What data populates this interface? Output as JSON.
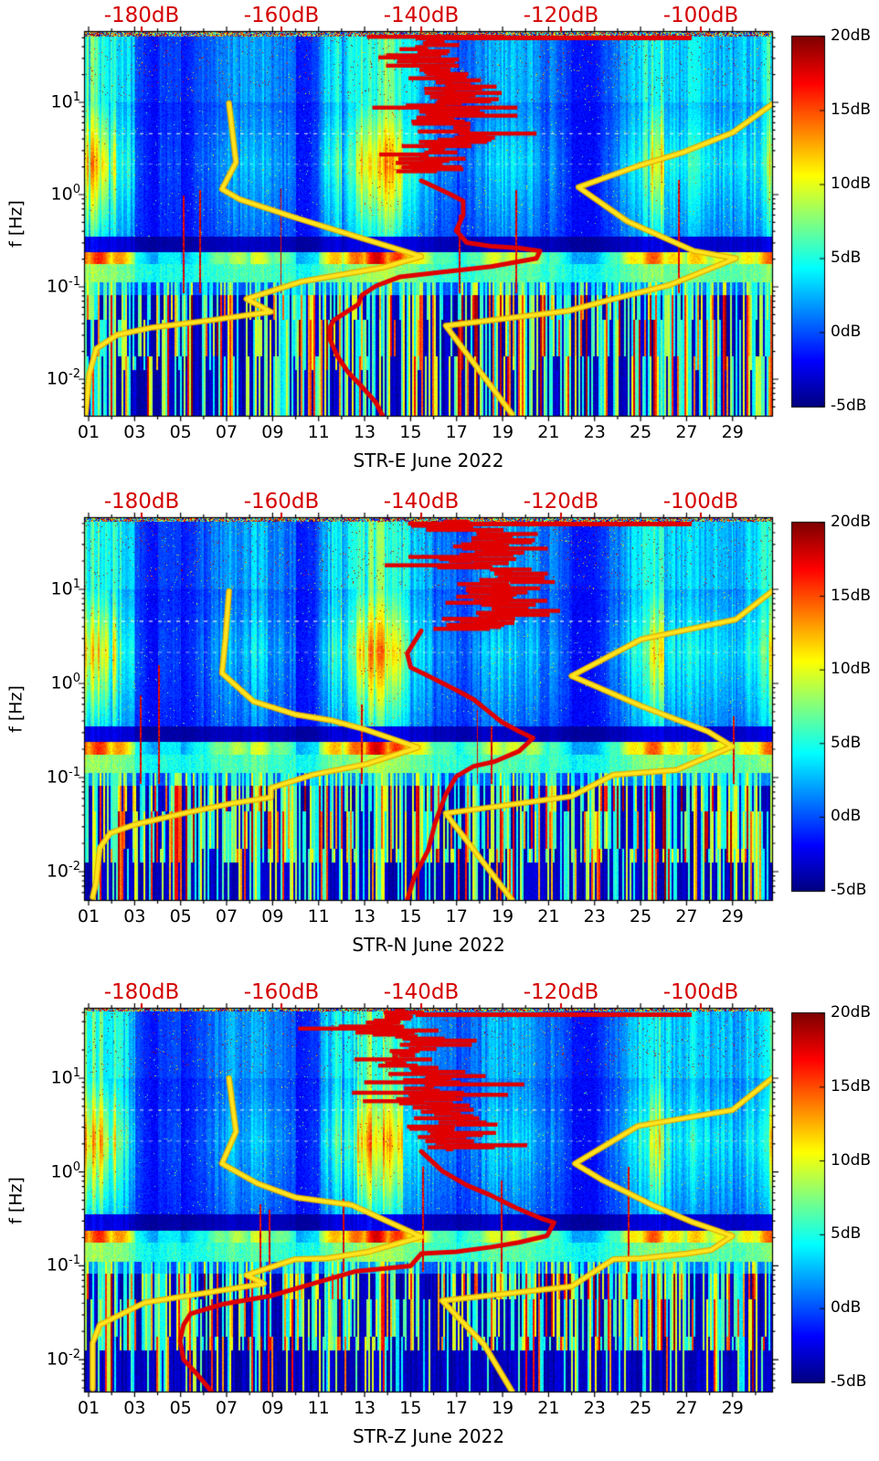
{
  "figure": {
    "background": "#ffffff",
    "text_color": "#000000"
  },
  "chart_data": {
    "type": "heatmap",
    "description": "Three stacked seismic PSD spectrogram panels (E, N, Z components, June 2022): frequency vs day colored by power dB, with overlaid PSD-vs-frequency curves (two yellow noise-model curves, one red median curve) read against the red top dB axis.",
    "x_axis": {
      "tick_labels": [
        "01",
        "03",
        "05",
        "07",
        "09",
        "11",
        "13",
        "15",
        "17",
        "19",
        "21",
        "23",
        "25",
        "27",
        "29"
      ],
      "tick_days": [
        1,
        3,
        5,
        7,
        9,
        11,
        13,
        15,
        17,
        19,
        21,
        23,
        25,
        27,
        29
      ],
      "n_days": 30
    },
    "y_axis": {
      "label": "f [Hz]",
      "ticks": [
        {
          "base": "10",
          "exp": "1",
          "logf": 1
        },
        {
          "base": "10",
          "exp": "0",
          "logf": 0
        },
        {
          "base": "10",
          "exp": "-1",
          "logf": -1
        },
        {
          "base": "10",
          "exp": "-2",
          "logf": -2
        }
      ],
      "log_range": [
        -2.4,
        1.76
      ]
    },
    "top_axis": {
      "labels": [
        "-180dB",
        "-160dB",
        "-140dB",
        "-120dB",
        "-100dB"
      ],
      "values": [
        -180,
        -160,
        -140,
        -120,
        -100
      ],
      "db_range": [
        -188.1,
        -89.8
      ],
      "color": "#d40000"
    },
    "colorbar": {
      "labels": [
        "20dB",
        "15dB",
        "10dB",
        "5dB",
        "0dB",
        "-5dB"
      ],
      "values": [
        20,
        15,
        10,
        5,
        0,
        -5
      ],
      "vmin": -5,
      "vmax": 20,
      "colormap": "jet"
    },
    "curve_colors": {
      "yellow": "#ffe41e",
      "yellow_edge": "#dfae00",
      "red": "#e00000"
    },
    "panels": [
      {
        "title": "STR-E June 2022",
        "component": "E",
        "seed": 11,
        "deep_dark": 0.15,
        "curves": {
          "yellow_low": [
            [
              -188,
              -2.37
            ],
            [
              -187.5,
              -1.95
            ],
            [
              -186.5,
              -1.67
            ],
            [
              -183.5,
              -1.52
            ],
            [
              -178.5,
              -1.44
            ],
            [
              -170,
              -1.36
            ],
            [
              -161.5,
              -1.27
            ],
            [
              -165,
              -1.13
            ],
            [
              -157,
              -0.94
            ],
            [
              -145.5,
              -0.79
            ],
            [
              -140,
              -0.67
            ],
            [
              -149.5,
              -0.45
            ],
            [
              -158,
              -0.25
            ],
            [
              -166,
              -0.05
            ],
            [
              -168.5,
              0.06
            ],
            [
              -166.5,
              0.35
            ],
            [
              -167.5,
              0.99
            ]
          ],
          "yellow_high": [
            [
              -89.8,
              0.98
            ],
            [
              -95.5,
              0.67
            ],
            [
              -102.5,
              0.46
            ],
            [
              -109,
              0.31
            ],
            [
              -117.5,
              0.08
            ],
            [
              -110.5,
              -0.29
            ],
            [
              -101,
              -0.61
            ],
            [
              -95,
              -0.69
            ],
            [
              -104.5,
              -0.98
            ],
            [
              -113,
              -1.14
            ],
            [
              -119,
              -1.26
            ],
            [
              -136.5,
              -1.42
            ],
            [
              -127,
              -2.38
            ]
          ],
          "red_median": [
            [
              -140,
              0.15
            ],
            [
              -136,
              0.01
            ],
            [
              -134,
              -0.07
            ],
            [
              -134,
              -0.22
            ],
            [
              -135,
              -0.39
            ],
            [
              -133.5,
              -0.52
            ],
            [
              -130,
              -0.56
            ],
            [
              -126,
              -0.58
            ],
            [
              -123,
              -0.61
            ],
            [
              -123.5,
              -0.69
            ],
            [
              -130,
              -0.78
            ],
            [
              -137,
              -0.84
            ],
            [
              -143,
              -0.89
            ],
            [
              -146.5,
              -0.99
            ],
            [
              -148.5,
              -1.09
            ],
            [
              -149,
              -1.19
            ],
            [
              -152.5,
              -1.36
            ],
            [
              -153,
              -1.43
            ],
            [
              -153,
              -1.58
            ],
            [
              -152,
              -1.75
            ],
            [
              -150.5,
              -1.92
            ],
            [
              -148.5,
              -2.08
            ],
            [
              -146.5,
              -2.25
            ],
            [
              -145.5,
              -2.4
            ]
          ],
          "red_mass_spine": [
            [
              -138.8,
              1.71
            ],
            [
              -140.8,
              1.42
            ],
            [
              -134.9,
              1.17
            ],
            [
              -137.5,
              0.92
            ],
            [
              -133.6,
              0.64
            ],
            [
              -138.8,
              0.48
            ],
            [
              -140.1,
              0.23
            ]
          ],
          "red_mass_spread_db": 6,
          "red_top_bar": {
            "db": [
              -140.8,
              -101.3
            ]
          }
        }
      },
      {
        "title": "STR-N June 2022",
        "component": "N",
        "seed": 47,
        "deep_dark": 0.35,
        "curves": {
          "yellow_low": [
            [
              -167.5,
              0.98
            ],
            [
              -168,
              0.48
            ],
            [
              -168.5,
              0.11
            ],
            [
              -164,
              -0.19
            ],
            [
              -158,
              -0.33
            ],
            [
              -153,
              -0.39
            ],
            [
              -148,
              -0.49
            ],
            [
              -140.5,
              -0.68
            ],
            [
              -148,
              -0.86
            ],
            [
              -155.5,
              -0.97
            ],
            [
              -161.5,
              -1.11
            ],
            [
              -161.5,
              -1.21
            ],
            [
              -167.5,
              -1.28
            ],
            [
              -174,
              -1.38
            ],
            [
              -181,
              -1.5
            ],
            [
              -184.5,
              -1.59
            ],
            [
              -186,
              -1.75
            ],
            [
              -186.5,
              -2.11
            ],
            [
              -187,
              -2.27
            ]
          ],
          "yellow_high": [
            [
              -89.8,
              0.98
            ],
            [
              -95,
              0.68
            ],
            [
              -108.5,
              0.47
            ],
            [
              -118.5,
              0.08
            ],
            [
              -108.5,
              -0.24
            ],
            [
              -99,
              -0.51
            ],
            [
              -95.5,
              -0.67
            ],
            [
              -103.5,
              -0.92
            ],
            [
              -112.5,
              -0.97
            ],
            [
              -118.5,
              -1.2
            ],
            [
              -136.5,
              -1.38
            ],
            [
              -127,
              -2.3
            ]
          ],
          "red_median": [
            [
              -140,
              0.56
            ],
            [
              -142,
              0.32
            ],
            [
              -141.5,
              0.17
            ],
            [
              -139,
              0.08
            ],
            [
              -135,
              -0.07
            ],
            [
              -132.5,
              -0.17
            ],
            [
              -130.5,
              -0.29
            ],
            [
              -128.5,
              -0.41
            ],
            [
              -126,
              -0.51
            ],
            [
              -124,
              -0.58
            ],
            [
              -126,
              -0.72
            ],
            [
              -129.5,
              -0.83
            ],
            [
              -132.5,
              -0.88
            ],
            [
              -135,
              -0.99
            ],
            [
              -136.5,
              -1.18
            ],
            [
              -138,
              -1.48
            ],
            [
              -139,
              -1.77
            ],
            [
              -141,
              -2.06
            ],
            [
              -142,
              -2.3
            ]
          ],
          "red_mass_spine": [
            [
              -135,
              1.72
            ],
            [
              -128,
              1.5
            ],
            [
              -133,
              1.3
            ],
            [
              -126.5,
              1.1
            ],
            [
              -131,
              0.9
            ],
            [
              -127,
              0.75
            ],
            [
              -134,
              0.6
            ],
            [
              -140,
              0.56
            ]
          ],
          "red_mass_spread_db": 8,
          "red_top_bar": {
            "db": [
              -140.8,
              -101.3
            ]
          }
        }
      },
      {
        "title": "STR-Z June 2022",
        "component": "Z",
        "seed": 83,
        "deep_dark": 0.62,
        "curves": {
          "yellow_low": [
            [
              -167.5,
              1
            ],
            [
              -166.5,
              0.43
            ],
            [
              -168.5,
              0.09
            ],
            [
              -163.5,
              -0.12
            ],
            [
              -158,
              -0.27
            ],
            [
              -150,
              -0.35
            ],
            [
              -140,
              -0.69
            ],
            [
              -147.5,
              -0.85
            ],
            [
              -153.5,
              -0.92
            ],
            [
              -158,
              -0.93
            ],
            [
              -165,
              -1.1
            ],
            [
              -162.5,
              -1.19
            ],
            [
              -179.5,
              -1.39
            ],
            [
              -186,
              -1.63
            ],
            [
              -187,
              -1.82
            ],
            [
              -187,
              -2.31
            ]
          ],
          "yellow_high": [
            [
              -89.8,
              1
            ],
            [
              -95.5,
              0.66
            ],
            [
              -109,
              0.49
            ],
            [
              -118,
              0.09
            ],
            [
              -114,
              -0.09
            ],
            [
              -107,
              -0.35
            ],
            [
              -101,
              -0.54
            ],
            [
              -95.5,
              -0.68
            ],
            [
              -98.5,
              -0.83
            ],
            [
              -102,
              -0.87
            ],
            [
              -108.5,
              -0.92
            ],
            [
              -112.5,
              -0.93
            ],
            [
              -118.5,
              -1.22
            ],
            [
              -137,
              -1.37
            ],
            [
              -131,
              -1.84
            ],
            [
              -127,
              -2.34
            ]
          ],
          "red_median": [
            [
              -140,
              0.22
            ],
            [
              -137,
              0.01
            ],
            [
              -133.5,
              -0.14
            ],
            [
              -130,
              -0.25
            ],
            [
              -126.5,
              -0.38
            ],
            [
              -123,
              -0.49
            ],
            [
              -121,
              -0.54
            ],
            [
              -122,
              -0.68
            ],
            [
              -126,
              -0.75
            ],
            [
              -130,
              -0.8
            ],
            [
              -135,
              -0.85
            ],
            [
              -140,
              -0.87
            ],
            [
              -141.5,
              -1
            ],
            [
              -149.5,
              -1.06
            ],
            [
              -155.5,
              -1.19
            ],
            [
              -161.5,
              -1.32
            ],
            [
              -168.5,
              -1.41
            ],
            [
              -173,
              -1.51
            ],
            [
              -174,
              -1.63
            ],
            [
              -174.5,
              -1.8
            ],
            [
              -174,
              -2
            ],
            [
              -172,
              -2.16
            ],
            [
              -170,
              -2.34
            ]
          ],
          "red_mass_spine": [
            [
              -143,
              1.72
            ],
            [
              -147,
              1.55
            ],
            [
              -138,
              1.4
            ],
            [
              -144,
              1.2
            ],
            [
              -136,
              1
            ],
            [
              -141,
              0.8
            ],
            [
              -134.5,
              0.55
            ],
            [
              -137,
              0.35
            ],
            [
              -136,
              0.22
            ]
          ],
          "red_mass_spread_db": 7,
          "red_top_bar": {
            "db": [
              -140.8,
              -101.3
            ]
          }
        }
      }
    ]
  }
}
